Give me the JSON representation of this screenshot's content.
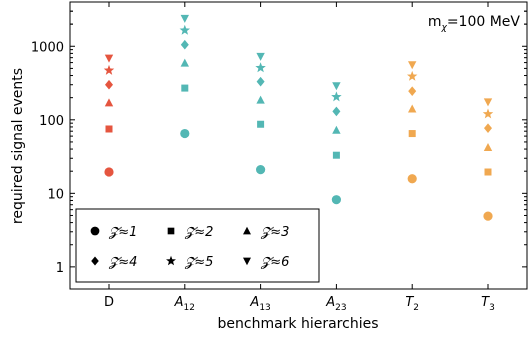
{
  "chart_data": {
    "type": "scatter",
    "title": "",
    "xlabel": "benchmark hierarchies",
    "ylabel": "required signal events",
    "y_scale": "log",
    "ylim": [
      0.5,
      4000
    ],
    "y_ticks": [
      {
        "value": 1,
        "label": "1"
      },
      {
        "value": 10,
        "label": "10"
      },
      {
        "value": 100,
        "label": "100"
      },
      {
        "value": 1000,
        "label": "1000"
      }
    ],
    "annotation": {
      "main": "m",
      "sub": "χ",
      "rest": "=100 MeV"
    },
    "categories": [
      {
        "main": "D",
        "sub": ""
      },
      {
        "main": "A",
        "sub": "12"
      },
      {
        "main": "A",
        "sub": "13"
      },
      {
        "main": "A",
        "sub": "23"
      },
      {
        "main": "T",
        "sub": "2"
      },
      {
        "main": "T",
        "sub": "3"
      }
    ],
    "colors": [
      "#e5553f",
      "#53b7b4",
      "#53b7b4",
      "#53b7b4",
      "#f0a850",
      "#f0a850"
    ],
    "series": [
      {
        "name": "𝓩≈1",
        "marker": "circle",
        "values": [
          19.5,
          65,
          21,
          8.2,
          15.8,
          4.9
        ]
      },
      {
        "name": "𝓩≈2",
        "marker": "square",
        "values": [
          75,
          270,
          87,
          33,
          65,
          19.5
        ]
      },
      {
        "name": "𝓩≈3",
        "marker": "triangle",
        "values": [
          170,
          590,
          185,
          72,
          140,
          42
        ]
      },
      {
        "name": "𝓩≈4",
        "marker": "diamond",
        "values": [
          300,
          1050,
          330,
          130,
          245,
          77
        ]
      },
      {
        "name": "𝓩≈5",
        "marker": "star",
        "values": [
          470,
          1650,
          510,
          205,
          390,
          120
        ]
      },
      {
        "name": "𝓩≈6",
        "marker": "tri_down",
        "values": [
          690,
          2400,
          730,
          290,
          560,
          175
        ]
      }
    ],
    "legend_placement": "bottom-left",
    "grid": false
  }
}
